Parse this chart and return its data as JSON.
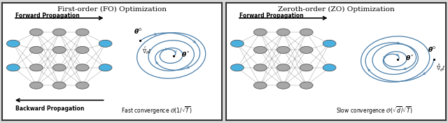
{
  "left_title": "First-order (FO) Optimization",
  "right_title": "Zeroth-order (ZO) Optimization",
  "forward_label": "Forward Propagation",
  "backward_label": "Backward Propagation",
  "left_convergence": "Fast convergence $\\mathcal{O}(1/\\sqrt{T})$",
  "right_convergence": "Slow convergence $\\mathcal{O}(\\sqrt{d}/\\sqrt{T})$",
  "node_gray": "#a8a8a8",
  "node_blue": "#4ab0e0",
  "node_edge": "#444444",
  "edge_color": "#666666",
  "spiral_color": "#4a7faa",
  "bg_color": "#d8d8d8",
  "panel_bg": "#ffffff",
  "border_color": "#333333",
  "text_color": "#111111"
}
